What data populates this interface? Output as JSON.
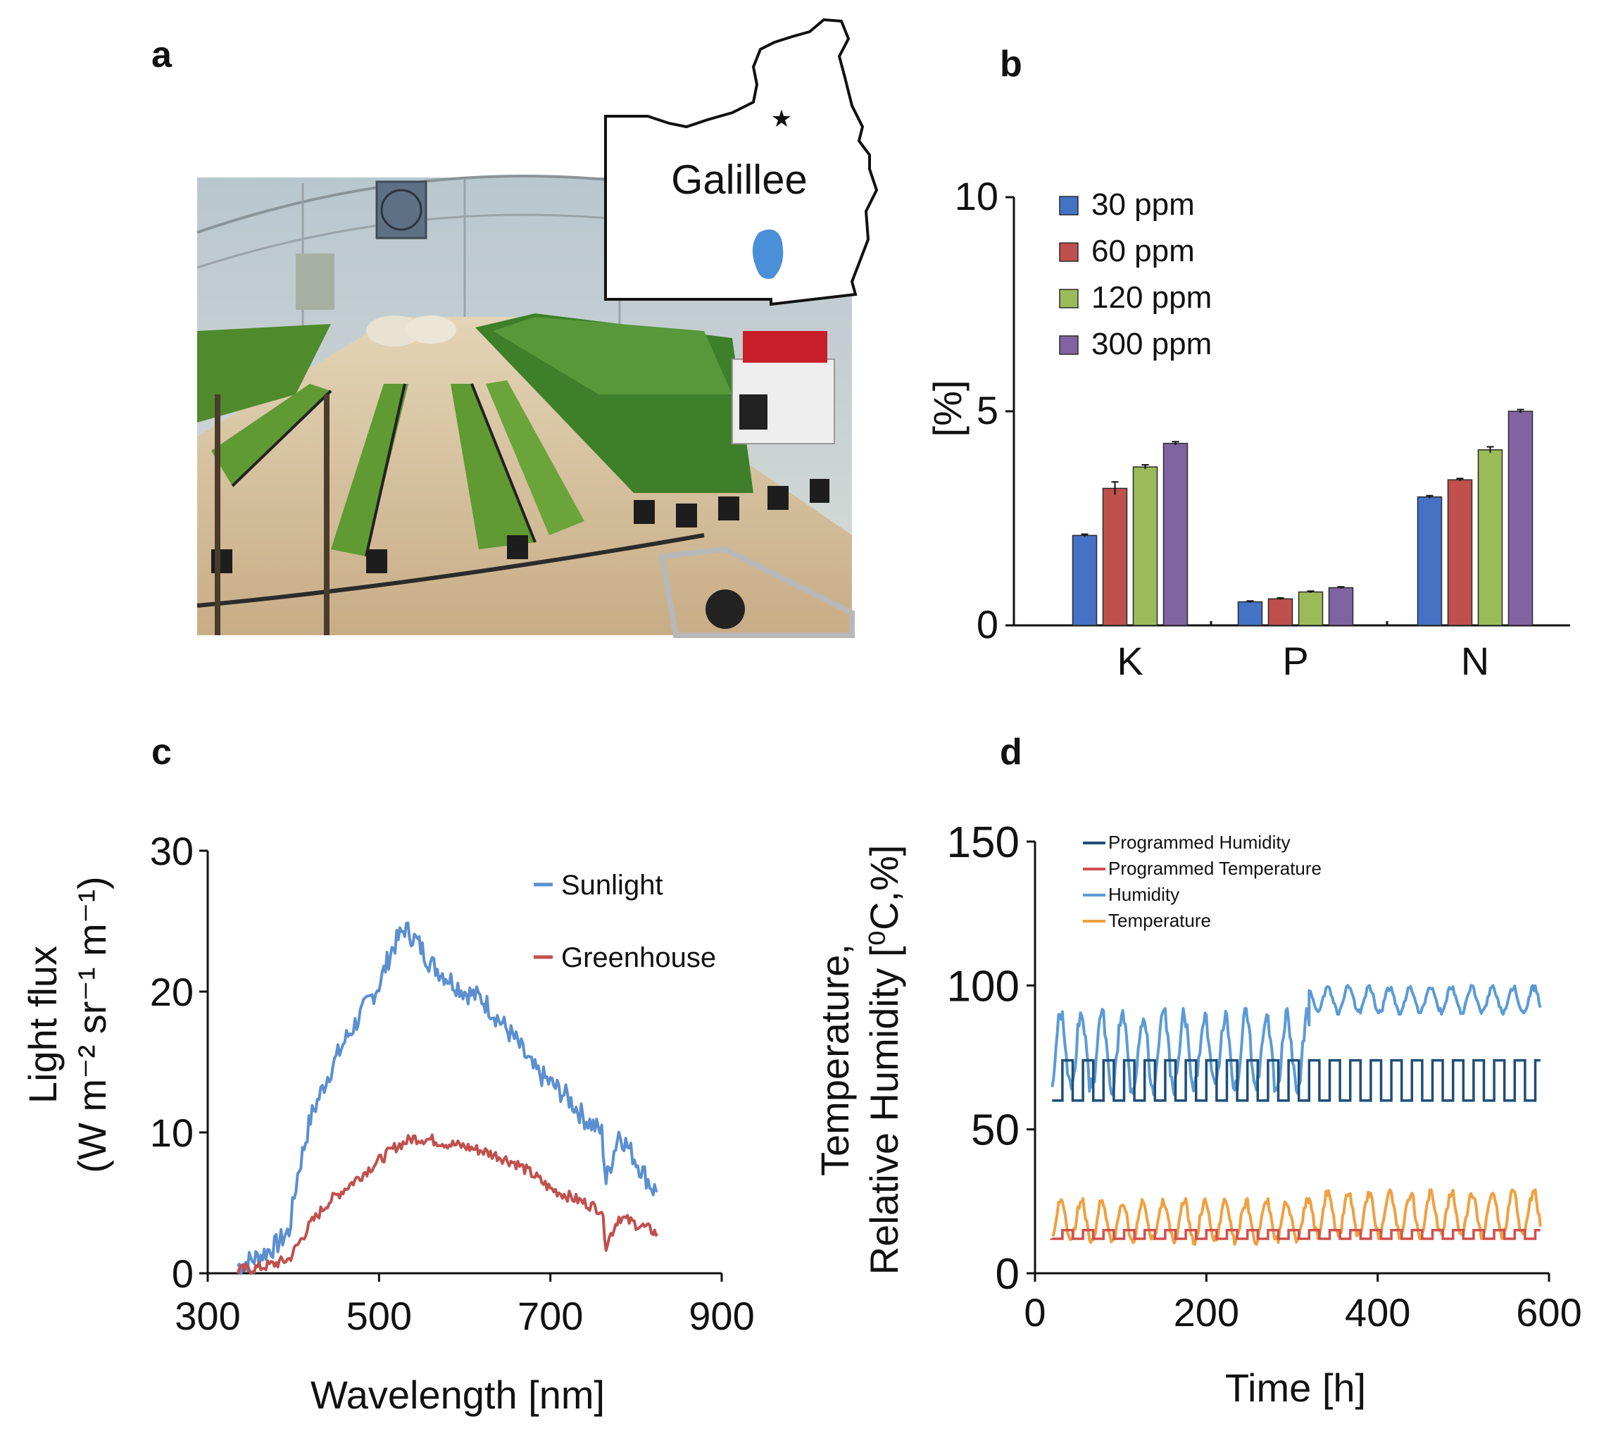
{
  "panels": {
    "a": "a",
    "b": "b",
    "c": "c",
    "d": "d"
  },
  "colors": {
    "blue": "#4472C4",
    "red": "#C0504D",
    "green": "#9BBB59",
    "purple": "#8064A2",
    "sun": "#5B8FD0",
    "green_house": "#C0504D",
    "prog_hum": "#1F4E79",
    "prog_temp": "#D0504D",
    "humidity": "#5B9BD5",
    "temperature": "#F0A040"
  },
  "map": {
    "label": "Galillee"
  },
  "chart_data": [
    {
      "id": "b",
      "type": "bar",
      "title": "",
      "xlabel": "",
      "ylabel": "[%]",
      "ylim": [
        0,
        10
      ],
      "yticks": [
        "0",
        "5",
        "10"
      ],
      "categories": [
        "K",
        "P",
        "N"
      ],
      "series": [
        {
          "name": "30 ppm",
          "values": [
            2.1,
            0.55,
            3.0
          ],
          "errors": [
            0.03,
            0.02,
            0.03
          ],
          "color": "#4472C4"
        },
        {
          "name": "60 ppm",
          "values": [
            3.2,
            0.62,
            3.4
          ],
          "errors": [
            0.15,
            0.02,
            0.03
          ],
          "color": "#C0504D"
        },
        {
          "name": "120 ppm",
          "values": [
            3.7,
            0.78,
            4.1
          ],
          "errors": [
            0.05,
            0.02,
            0.07
          ],
          "color": "#9BBB59"
        },
        {
          "name": "300 ppm",
          "values": [
            4.25,
            0.88,
            5.0
          ],
          "errors": [
            0.04,
            0.02,
            0.04
          ],
          "color": "#8064A2"
        }
      ],
      "legend_position": "top-left"
    },
    {
      "id": "c",
      "type": "line",
      "xlabel": "Wavelength [nm]",
      "ylabel_line1": "Light flux",
      "ylabel_line2": "(W m⁻² sr⁻¹ m⁻¹)",
      "xlim": [
        300,
        900
      ],
      "ylim": [
        0,
        30
      ],
      "xticks": [
        "300",
        "500",
        "700",
        "900"
      ],
      "yticks": [
        "0",
        "10",
        "20",
        "30"
      ],
      "series": [
        {
          "name": "Sunlight",
          "color": "#5B8FD0",
          "x": [
            335,
            360,
            380,
            395,
            405,
            420,
            440,
            460,
            480,
            500,
            515,
            530,
            545,
            560,
            580,
            600,
            620,
            640,
            660,
            680,
            700,
            720,
            740,
            760,
            765,
            780,
            800,
            820,
            825
          ],
          "y": [
            0.5,
            1.2,
            2.0,
            3.0,
            7.0,
            11.0,
            14.0,
            16.5,
            18.5,
            20.5,
            23.0,
            24.5,
            23.5,
            22.0,
            21.0,
            20.0,
            19.5,
            18.0,
            16.5,
            14.5,
            13.5,
            12.5,
            11.0,
            10.0,
            6.5,
            10.0,
            8.0,
            6.0,
            5.8
          ]
        },
        {
          "name": "Greenhouse",
          "color": "#C0504D",
          "x": [
            335,
            360,
            380,
            395,
            405,
            420,
            440,
            460,
            480,
            500,
            520,
            540,
            560,
            580,
            600,
            620,
            640,
            660,
            680,
            700,
            720,
            740,
            760,
            765,
            780,
            800,
            820,
            825
          ],
          "y": [
            0.2,
            0.4,
            0.7,
            1.0,
            2.0,
            3.5,
            5.0,
            6.0,
            7.0,
            8.0,
            9.0,
            9.6,
            9.5,
            9.2,
            9.0,
            8.7,
            8.3,
            7.8,
            7.0,
            6.0,
            5.5,
            5.0,
            4.5,
            2.0,
            4.0,
            3.5,
            3.0,
            2.8
          ]
        }
      ],
      "legend_position": "top-right"
    },
    {
      "id": "d",
      "type": "line",
      "xlabel": "Time [h]",
      "ylabel_line1": "Temperature,",
      "ylabel_line2": "Relative Humidity [⁰C,%]",
      "xlim": [
        0,
        600
      ],
      "ylim": [
        0,
        150
      ],
      "xticks": [
        "0",
        "200",
        "400",
        "600"
      ],
      "yticks": [
        "0",
        "50",
        "100",
        "150"
      ],
      "series": [
        {
          "name": "Programmed Humidity",
          "color": "#1F4E79",
          "pattern": "square",
          "low": 60,
          "high": 74,
          "period_h": 24,
          "x_start": 20,
          "x_end": 590
        },
        {
          "name": "Programmed Temperature",
          "color": "#D0504D",
          "pattern": "square",
          "low": 12,
          "high": 15,
          "period_h": 24,
          "x_start": 20,
          "x_end": 590
        },
        {
          "name": "Humidity",
          "color": "#5B9BD5",
          "pattern": "oscillating",
          "segments": [
            {
              "x_from": 20,
              "x_to": 320,
              "low": 62,
              "high": 92
            },
            {
              "x_from": 320,
              "x_to": 590,
              "low": 90,
              "high": 100
            }
          ]
        },
        {
          "name": "Temperature",
          "color": "#F0A040",
          "pattern": "oscillating",
          "segments": [
            {
              "x_from": 20,
              "x_to": 320,
              "low": 10,
              "high": 26
            },
            {
              "x_from": 320,
              "x_to": 590,
              "low": 12,
              "high": 29
            }
          ]
        }
      ],
      "legend_position": "top-left"
    }
  ]
}
